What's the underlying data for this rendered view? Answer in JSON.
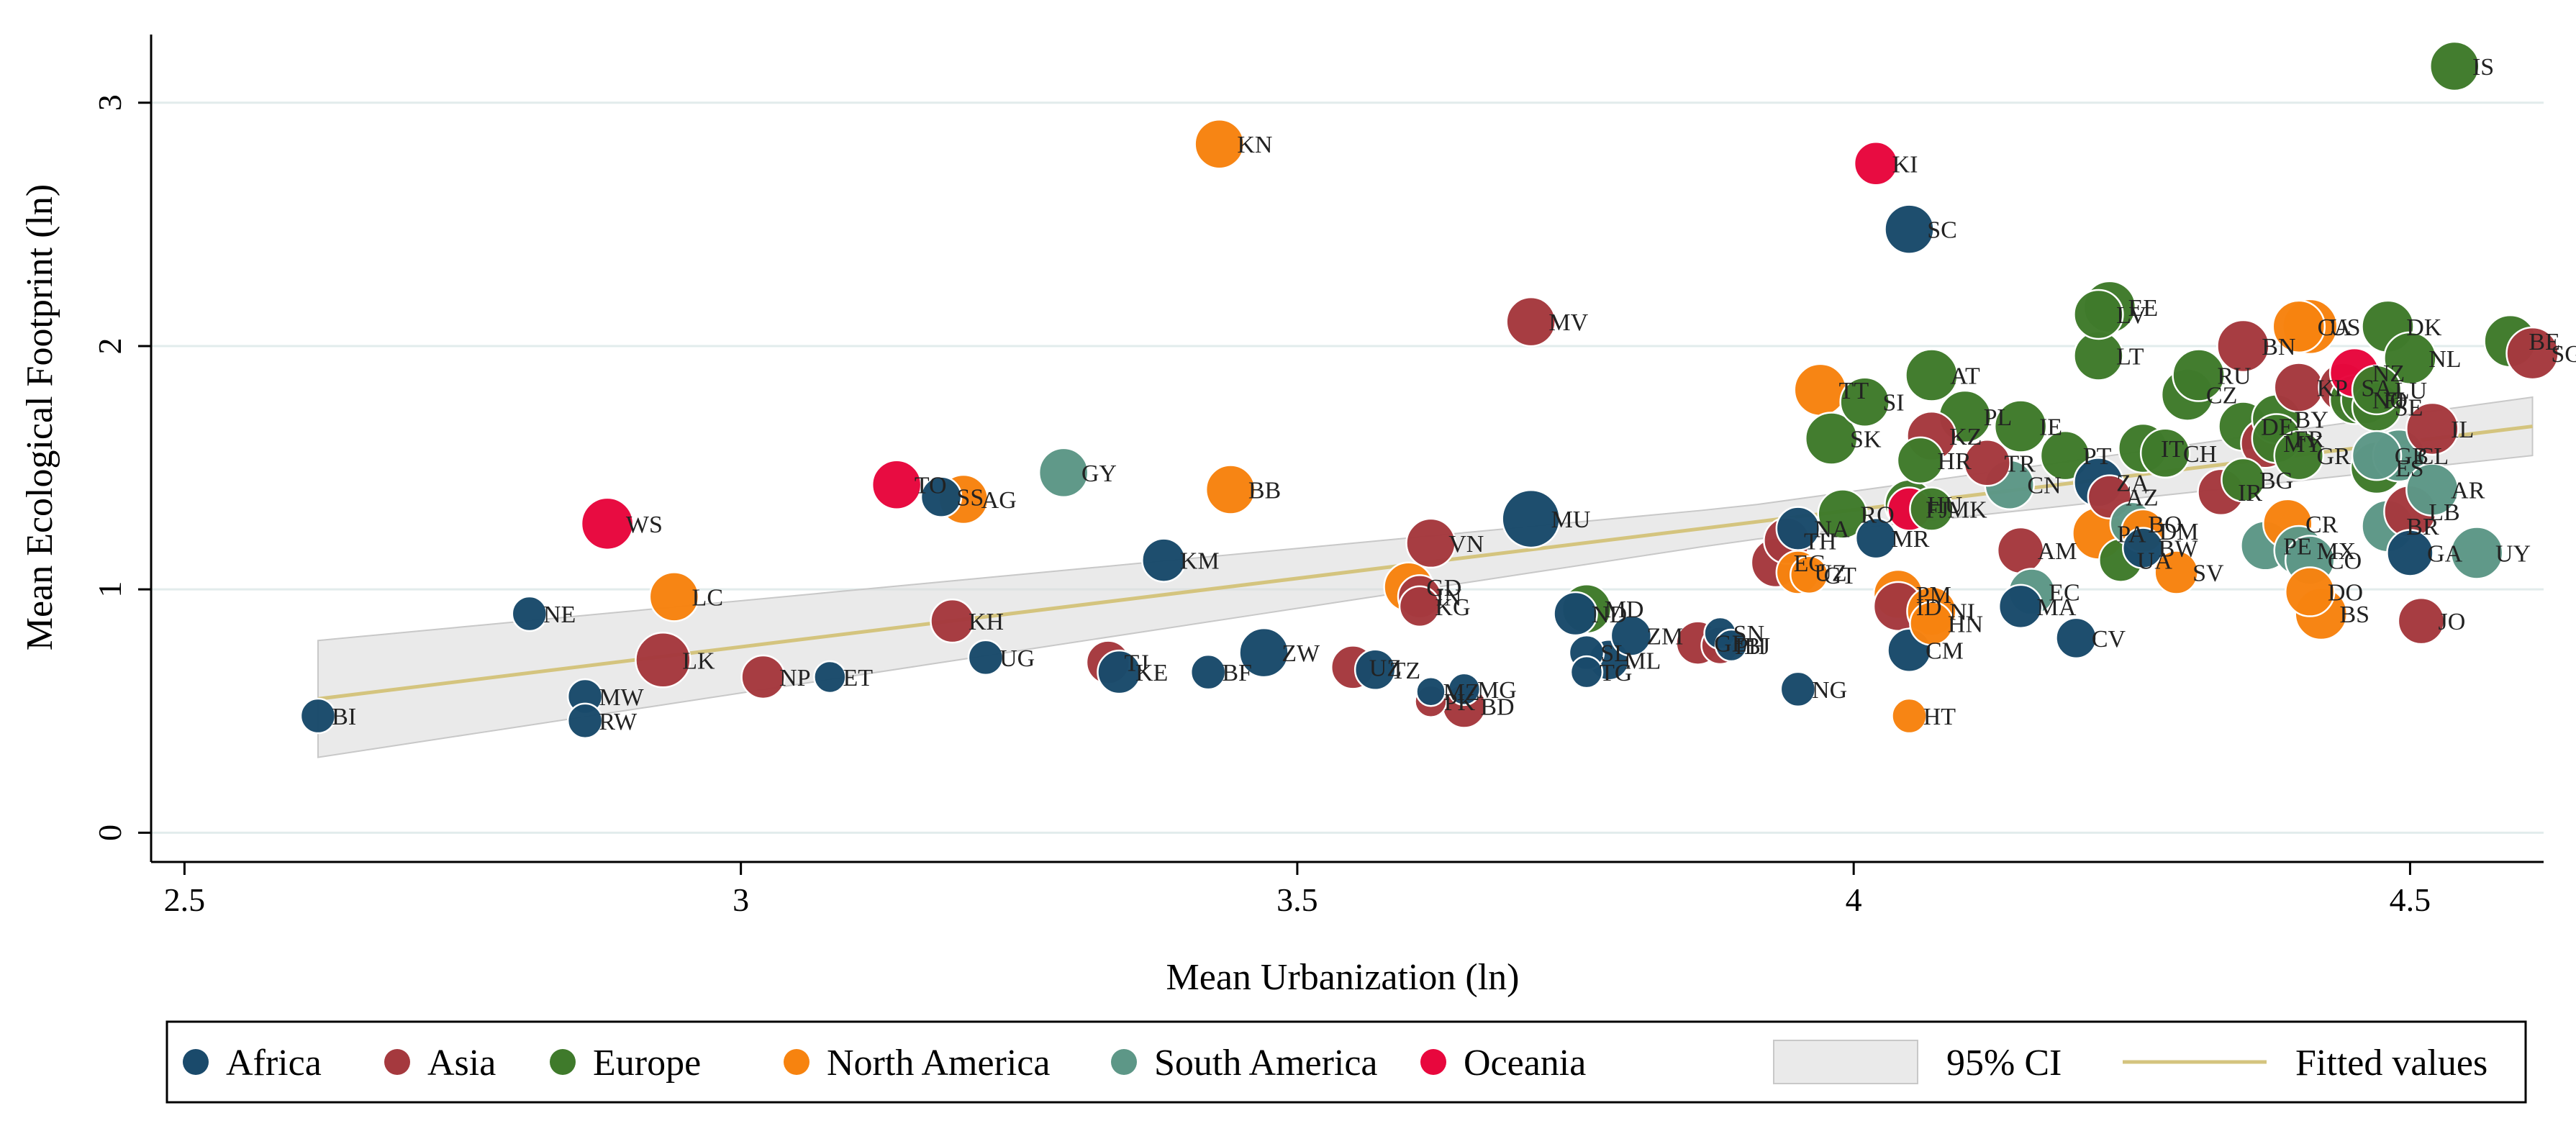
{
  "chart_data": {
    "type": "scatter",
    "xlabel": "Mean Urbanization (ln)",
    "ylabel": "Mean Ecological Footprint (ln)",
    "xlim": [
      2.47,
      4.62
    ],
    "ylim": [
      -0.12,
      3.28
    ],
    "x_ticks": [
      2.5,
      3,
      3.5,
      4,
      4.5
    ],
    "x_tick_labels": [
      "2.5",
      "3",
      "3.5",
      "4",
      "4.5"
    ],
    "y_ticks": [
      0,
      1,
      2,
      3
    ],
    "y_tick_labels": [
      "0",
      "1",
      "2",
      "3"
    ],
    "grid": true,
    "regions": {
      "Africa": "#1a4a6b",
      "Asia": "#a5393e",
      "Europe": "#3f7a2b",
      "North America": "#f7830f",
      "South America": "#5d9787",
      "Oceania": "#e8073d"
    },
    "fit": {
      "x0": 2.62,
      "y0": 0.55,
      "x1": 4.61,
      "y1": 1.67,
      "color": "#d4c47e"
    },
    "ci_band": {
      "half_width_left": 0.24,
      "half_width_mid": 0.07,
      "half_width_right": 0.12,
      "color": "#d9d9d9"
    },
    "points": [
      {
        "label": "BI",
        "x": 2.62,
        "y": 0.48,
        "size": 12,
        "region": "Africa"
      },
      {
        "label": "NE",
        "x": 2.81,
        "y": 0.9,
        "size": 12,
        "region": "Africa"
      },
      {
        "label": "MW",
        "x": 2.86,
        "y": 0.56,
        "size": 12,
        "region": "Africa"
      },
      {
        "label": "RW",
        "x": 2.86,
        "y": 0.46,
        "size": 12,
        "region": "Africa"
      },
      {
        "label": "WS",
        "x": 2.88,
        "y": 1.27,
        "size": 18,
        "region": "Oceania"
      },
      {
        "label": "LK",
        "x": 2.93,
        "y": 0.71,
        "size": 19,
        "region": "Asia"
      },
      {
        "label": "LC",
        "x": 2.94,
        "y": 0.97,
        "size": 17,
        "region": "North America"
      },
      {
        "label": "NP",
        "x": 3.02,
        "y": 0.64,
        "size": 15,
        "region": "Asia"
      },
      {
        "label": "ET",
        "x": 3.08,
        "y": 0.64,
        "size": 11,
        "region": "Africa"
      },
      {
        "label": "TO",
        "x": 3.14,
        "y": 1.43,
        "size": 17,
        "region": "Oceania"
      },
      {
        "label": "SS",
        "x": 3.18,
        "y": 1.38,
        "size": 14,
        "region": "Africa"
      },
      {
        "label": "AG",
        "x": 3.2,
        "y": 1.37,
        "size": 17,
        "region": "North America"
      },
      {
        "label": "KH",
        "x": 3.19,
        "y": 0.87,
        "size": 15,
        "region": "Asia"
      },
      {
        "label": "UG",
        "x": 3.22,
        "y": 0.72,
        "size": 12,
        "region": "Africa"
      },
      {
        "label": "GY",
        "x": 3.29,
        "y": 1.48,
        "size": 17,
        "region": "South America"
      },
      {
        "label": "TJ",
        "x": 3.33,
        "y": 0.7,
        "size": 15,
        "region": "Asia"
      },
      {
        "label": "KE",
        "x": 3.34,
        "y": 0.66,
        "size": 15,
        "region": "Africa"
      },
      {
        "label": "KM",
        "x": 3.38,
        "y": 1.12,
        "size": 15,
        "region": "Africa"
      },
      {
        "label": "BF",
        "x": 3.42,
        "y": 0.66,
        "size": 12,
        "region": "Africa"
      },
      {
        "label": "KN",
        "x": 3.43,
        "y": 2.83,
        "size": 17,
        "region": "North America"
      },
      {
        "label": "BB",
        "x": 3.44,
        "y": 1.41,
        "size": 17,
        "region": "North America"
      },
      {
        "label": "ZW",
        "x": 3.47,
        "y": 0.74,
        "size": 17,
        "region": "Africa"
      },
      {
        "label": "UZ",
        "x": 3.55,
        "y": 0.68,
        "size": 15,
        "region": "Asia"
      },
      {
        "label": "TZ",
        "x": 3.57,
        "y": 0.67,
        "size": 14,
        "region": "Africa"
      },
      {
        "label": "GD",
        "x": 3.6,
        "y": 1.01,
        "size": 17,
        "region": "North America"
      },
      {
        "label": "KG",
        "x": 3.61,
        "y": 0.93,
        "size": 14,
        "region": "Asia"
      },
      {
        "label": "IN",
        "x": 3.61,
        "y": 0.97,
        "size": 15,
        "region": "Asia"
      },
      {
        "label": "VN",
        "x": 3.62,
        "y": 1.19,
        "size": 17,
        "region": "Asia"
      },
      {
        "label": "MZ",
        "x": 3.62,
        "y": 0.58,
        "size": 10,
        "region": "Africa"
      },
      {
        "label": "PK",
        "x": 3.62,
        "y": 0.54,
        "size": 11,
        "region": "Asia"
      },
      {
        "label": "BD",
        "x": 3.65,
        "y": 0.52,
        "size": 15,
        "region": "Asia"
      },
      {
        "label": "MG",
        "x": 3.65,
        "y": 0.59,
        "size": 11,
        "region": "Africa"
      },
      {
        "label": "MV",
        "x": 3.71,
        "y": 2.1,
        "size": 17,
        "region": "Asia"
      },
      {
        "label": "MU",
        "x": 3.71,
        "y": 1.29,
        "size": 20,
        "region": "Africa"
      },
      {
        "label": "MD",
        "x": 3.76,
        "y": 0.92,
        "size": 17,
        "region": "Europe"
      },
      {
        "label": "ND",
        "x": 3.75,
        "y": 0.9,
        "size": 15,
        "region": "Africa"
      },
      {
        "label": "SL",
        "x": 3.76,
        "y": 0.74,
        "size": 12,
        "region": "Africa"
      },
      {
        "label": "TG",
        "x": 3.76,
        "y": 0.66,
        "size": 11,
        "region": "Africa"
      },
      {
        "label": "ML",
        "x": 3.78,
        "y": 0.71,
        "size": 14,
        "region": "Africa"
      },
      {
        "label": "ZM",
        "x": 3.8,
        "y": 0.81,
        "size": 14,
        "region": "Africa"
      },
      {
        "label": "GE",
        "x": 3.86,
        "y": 0.78,
        "size": 15,
        "region": "Asia"
      },
      {
        "label": "SN",
        "x": 3.88,
        "y": 0.82,
        "size": 11,
        "region": "Africa"
      },
      {
        "label": "PH",
        "x": 3.88,
        "y": 0.77,
        "size": 13,
        "region": "Asia"
      },
      {
        "label": "BJ",
        "x": 3.89,
        "y": 0.77,
        "size": 11,
        "region": "Africa"
      },
      {
        "label": "EG",
        "x": 3.93,
        "y": 1.11,
        "size": 17,
        "region": "Asia"
      },
      {
        "label": "TH",
        "x": 3.94,
        "y": 1.2,
        "size": 16,
        "region": "Asia"
      },
      {
        "label": "UZ",
        "x": 3.95,
        "y": 1.07,
        "size": 15,
        "region": "North America"
      },
      {
        "label": "GT",
        "x": 3.96,
        "y": 1.06,
        "size": 13,
        "region": "North America"
      },
      {
        "label": "NA",
        "x": 3.95,
        "y": 1.25,
        "size": 15,
        "region": "Africa"
      },
      {
        "label": "NG",
        "x": 3.95,
        "y": 0.59,
        "size": 12,
        "region": "Africa"
      },
      {
        "label": "TT",
        "x": 3.97,
        "y": 1.82,
        "size": 18,
        "region": "North America"
      },
      {
        "label": "SK",
        "x": 3.98,
        "y": 1.62,
        "size": 18,
        "region": "Europe"
      },
      {
        "label": "RO",
        "x": 3.99,
        "y": 1.31,
        "size": 17,
        "region": "Europe"
      },
      {
        "label": "SI",
        "x": 4.01,
        "y": 1.77,
        "size": 17,
        "region": "Europe"
      },
      {
        "label": "MR",
        "x": 4.02,
        "y": 1.21,
        "size": 14,
        "region": "Africa"
      },
      {
        "label": "KI",
        "x": 4.02,
        "y": 2.75,
        "size": 15,
        "region": "Oceania"
      },
      {
        "label": "SC",
        "x": 4.05,
        "y": 2.48,
        "size": 17,
        "region": "Africa"
      },
      {
        "label": "PM",
        "x": 4.04,
        "y": 0.98,
        "size": 17,
        "region": "North America"
      },
      {
        "label": "ID",
        "x": 4.04,
        "y": 0.93,
        "size": 17,
        "region": "Asia"
      },
      {
        "label": "HT",
        "x": 4.05,
        "y": 0.48,
        "size": 12,
        "region": "North America"
      },
      {
        "label": "CM",
        "x": 4.05,
        "y": 0.75,
        "size": 15,
        "region": "Africa"
      },
      {
        "label": "HU",
        "x": 4.05,
        "y": 1.35,
        "size": 17,
        "region": "Europe"
      },
      {
        "label": "FJ",
        "x": 4.05,
        "y": 1.33,
        "size": 15,
        "region": "Oceania"
      },
      {
        "label": "MK",
        "x": 4.07,
        "y": 1.33,
        "size": 15,
        "region": "Europe"
      },
      {
        "label": "NI",
        "x": 4.07,
        "y": 0.91,
        "size": 17,
        "region": "North America"
      },
      {
        "label": "HN",
        "x": 4.07,
        "y": 0.86,
        "size": 15,
        "region": "North America"
      },
      {
        "label": "HR",
        "x": 4.06,
        "y": 1.53,
        "size": 16,
        "region": "Europe"
      },
      {
        "label": "KZ",
        "x": 4.07,
        "y": 1.63,
        "size": 17,
        "region": "Asia"
      },
      {
        "label": "AT",
        "x": 4.07,
        "y": 1.88,
        "size": 18,
        "region": "Europe"
      },
      {
        "label": "PL",
        "x": 4.1,
        "y": 1.71,
        "size": 18,
        "region": "Europe"
      },
      {
        "label": "TR",
        "x": 4.12,
        "y": 1.52,
        "size": 16,
        "region": "Asia"
      },
      {
        "label": "CN",
        "x": 4.14,
        "y": 1.43,
        "size": 17,
        "region": "South America"
      },
      {
        "label": "AM",
        "x": 4.15,
        "y": 1.16,
        "size": 16,
        "region": "Asia"
      },
      {
        "label": "MA",
        "x": 4.15,
        "y": 0.93,
        "size": 15,
        "region": "Africa"
      },
      {
        "label": "EC",
        "x": 4.16,
        "y": 0.99,
        "size": 16,
        "region": "South America"
      },
      {
        "label": "IE",
        "x": 4.15,
        "y": 1.67,
        "size": 18,
        "region": "Europe"
      },
      {
        "label": "CV",
        "x": 4.2,
        "y": 0.8,
        "size": 14,
        "region": "Africa"
      },
      {
        "label": "PT",
        "x": 4.19,
        "y": 1.55,
        "size": 17,
        "region": "Europe"
      },
      {
        "label": "LT",
        "x": 4.22,
        "y": 1.96,
        "size": 17,
        "region": "Europe"
      },
      {
        "label": "LV",
        "x": 4.22,
        "y": 2.13,
        "size": 17,
        "region": "Europe"
      },
      {
        "label": "EE",
        "x": 4.23,
        "y": 2.16,
        "size": 18,
        "region": "Europe"
      },
      {
        "label": "ZA",
        "x": 4.22,
        "y": 1.44,
        "size": 17,
        "region": "Africa"
      },
      {
        "label": "PA",
        "x": 4.22,
        "y": 1.23,
        "size": 18,
        "region": "North America"
      },
      {
        "label": "AZ",
        "x": 4.23,
        "y": 1.38,
        "size": 15,
        "region": "Asia"
      },
      {
        "label": "UA",
        "x": 4.24,
        "y": 1.12,
        "size": 15,
        "region": "Europe"
      },
      {
        "label": "BO",
        "x": 4.25,
        "y": 1.27,
        "size": 15,
        "region": "South America"
      },
      {
        "label": "BW",
        "x": 4.26,
        "y": 1.17,
        "size": 14,
        "region": "Africa"
      },
      {
        "label": "DM",
        "x": 4.26,
        "y": 1.24,
        "size": 15,
        "region": "North America"
      },
      {
        "label": "IT",
        "x": 4.26,
        "y": 1.58,
        "size": 17,
        "region": "Europe"
      },
      {
        "label": "CH",
        "x": 4.28,
        "y": 1.56,
        "size": 17,
        "region": "Europe"
      },
      {
        "label": "SV",
        "x": 4.29,
        "y": 1.07,
        "size": 15,
        "region": "North America"
      },
      {
        "label": "CZ",
        "x": 4.3,
        "y": 1.8,
        "size": 18,
        "region": "Europe"
      },
      {
        "label": "RU",
        "x": 4.31,
        "y": 1.88,
        "size": 18,
        "region": "Europe"
      },
      {
        "label": "IR",
        "x": 4.33,
        "y": 1.4,
        "size": 16,
        "region": "Asia"
      },
      {
        "label": "BN",
        "x": 4.35,
        "y": 2.0,
        "size": 18,
        "region": "Asia"
      },
      {
        "label": "DE",
        "x": 4.35,
        "y": 1.67,
        "size": 17,
        "region": "Europe"
      },
      {
        "label": "BG",
        "x": 4.35,
        "y": 1.45,
        "size": 15,
        "region": "Europe"
      },
      {
        "label": "MY",
        "x": 4.37,
        "y": 1.6,
        "size": 17,
        "region": "Asia"
      },
      {
        "label": "BY",
        "x": 4.38,
        "y": 1.7,
        "size": 17,
        "region": "Europe"
      },
      {
        "label": "FR",
        "x": 4.38,
        "y": 1.62,
        "size": 17,
        "region": "Europe"
      },
      {
        "label": "PE",
        "x": 4.37,
        "y": 1.18,
        "size": 17,
        "region": "South America"
      },
      {
        "label": "CR",
        "x": 4.39,
        "y": 1.27,
        "size": 17,
        "region": "North America"
      },
      {
        "label": "CA",
        "x": 4.4,
        "y": 2.08,
        "size": 18,
        "region": "North America"
      },
      {
        "label": "US",
        "x": 4.41,
        "y": 2.08,
        "size": 19,
        "region": "North America"
      },
      {
        "label": "KP",
        "x": 4.4,
        "y": 1.83,
        "size": 17,
        "region": "Asia"
      },
      {
        "label": "GR",
        "x": 4.4,
        "y": 1.55,
        "size": 17,
        "region": "Europe"
      },
      {
        "label": "MX",
        "x": 4.4,
        "y": 1.16,
        "size": 17,
        "region": "South America"
      },
      {
        "label": "CO",
        "x": 4.41,
        "y": 1.12,
        "size": 17,
        "region": "South America"
      },
      {
        "label": "DO",
        "x": 4.41,
        "y": 0.99,
        "size": 17,
        "region": "North America"
      },
      {
        "label": "BS",
        "x": 4.42,
        "y": 0.9,
        "size": 18,
        "region": "North America"
      },
      {
        "label": "SA",
        "x": 4.44,
        "y": 1.83,
        "size": 17,
        "region": "Asia"
      },
      {
        "label": "NO",
        "x": 4.45,
        "y": 1.78,
        "size": 17,
        "region": "Europe"
      },
      {
        "label": "FI",
        "x": 4.46,
        "y": 1.78,
        "size": 17,
        "region": "Europe"
      },
      {
        "label": "NZ",
        "x": 4.45,
        "y": 1.89,
        "size": 17,
        "region": "Oceania"
      },
      {
        "label": "SE",
        "x": 4.47,
        "y": 1.75,
        "size": 17,
        "region": "Europe"
      },
      {
        "label": "LU",
        "x": 4.47,
        "y": 1.82,
        "size": 17,
        "region": "Europe"
      },
      {
        "label": "ES",
        "x": 4.47,
        "y": 1.5,
        "size": 18,
        "region": "Europe"
      },
      {
        "label": "GB",
        "x": 4.47,
        "y": 1.55,
        "size": 17,
        "region": "South America"
      },
      {
        "label": "DK",
        "x": 4.48,
        "y": 2.08,
        "size": 18,
        "region": "Europe"
      },
      {
        "label": "BR",
        "x": 4.48,
        "y": 1.26,
        "size": 18,
        "region": "South America"
      },
      {
        "label": "CL",
        "x": 4.49,
        "y": 1.55,
        "size": 18,
        "region": "South America"
      },
      {
        "label": "NL",
        "x": 4.5,
        "y": 1.95,
        "size": 18,
        "region": "Europe"
      },
      {
        "label": "LB",
        "x": 4.5,
        "y": 1.32,
        "size": 18,
        "region": "Asia"
      },
      {
        "label": "GA",
        "x": 4.5,
        "y": 1.15,
        "size": 16,
        "region": "Africa"
      },
      {
        "label": "JO",
        "x": 4.51,
        "y": 0.87,
        "size": 16,
        "region": "Asia"
      },
      {
        "label": "AR",
        "x": 4.52,
        "y": 1.41,
        "size": 18,
        "region": "South America"
      },
      {
        "label": "IL",
        "x": 4.52,
        "y": 1.66,
        "size": 18,
        "region": "Asia"
      },
      {
        "label": "IS",
        "x": 4.54,
        "y": 3.15,
        "size": 17,
        "region": "Europe"
      },
      {
        "label": "UY",
        "x": 4.56,
        "y": 1.15,
        "size": 18,
        "region": "South America"
      },
      {
        "label": "BE",
        "x": 4.59,
        "y": 2.02,
        "size": 18,
        "region": "Europe"
      },
      {
        "label": "SG",
        "x": 4.61,
        "y": 1.97,
        "size": 18,
        "region": "Asia"
      }
    ],
    "legend": {
      "placement": "bottom",
      "items": [
        {
          "label": "Africa",
          "kind": "marker",
          "region": "Africa"
        },
        {
          "label": "Asia",
          "kind": "marker",
          "region": "Asia"
        },
        {
          "label": "Europe",
          "kind": "marker",
          "region": "Europe"
        },
        {
          "label": "North America",
          "kind": "marker",
          "region": "North America"
        },
        {
          "label": "South America",
          "kind": "marker",
          "region": "South America"
        },
        {
          "label": "Oceania",
          "kind": "marker",
          "region": "Oceania"
        },
        {
          "label": "95% CI",
          "kind": "band"
        },
        {
          "label": "Fitted values",
          "kind": "line"
        }
      ]
    }
  }
}
